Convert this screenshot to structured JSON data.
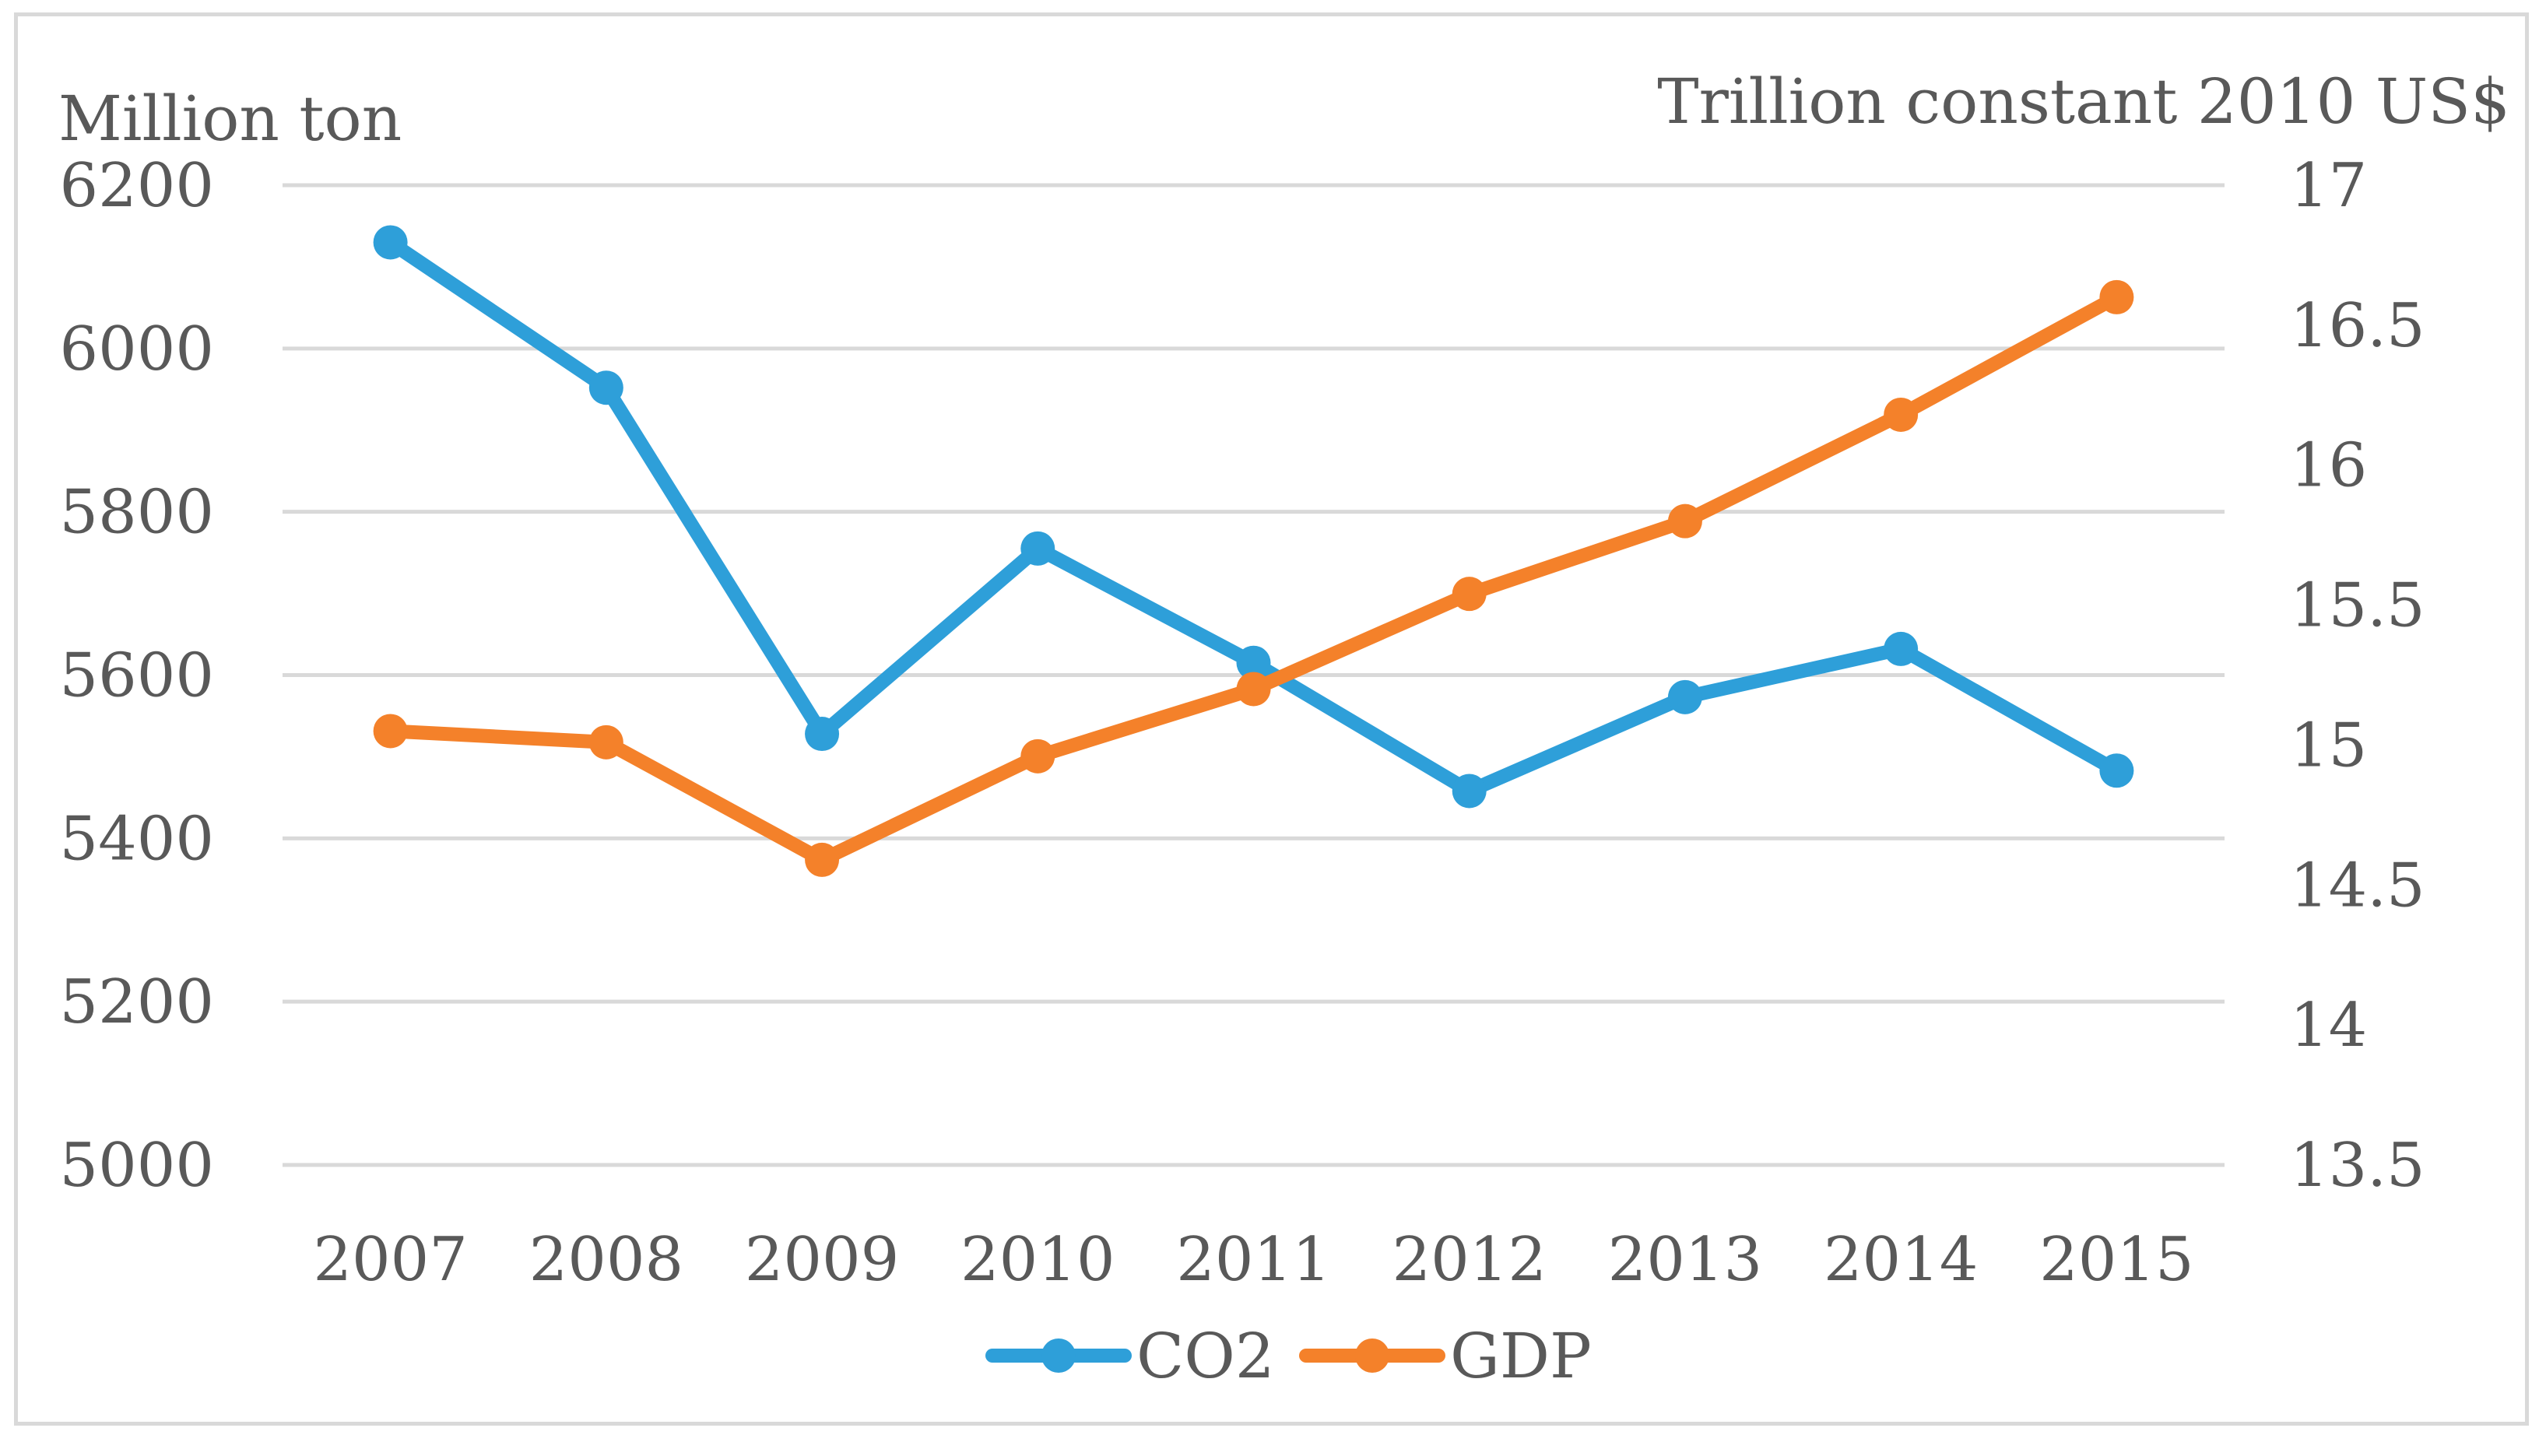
{
  "chart_data": {
    "type": "line",
    "title": "",
    "categories": [
      "2007",
      "2008",
      "2009",
      "2010",
      "2011",
      "2012",
      "2013",
      "2014",
      "2015"
    ],
    "y_left": {
      "label": "Million ton",
      "ylim": [
        5000,
        6200
      ],
      "ticks": [
        "5000",
        "5200",
        "5400",
        "5600",
        "5800",
        "6000",
        "6200"
      ]
    },
    "y_right": {
      "label": "Trillion constant 2010 US$",
      "ylim": [
        13.5,
        17
      ],
      "ticks": [
        "13.5",
        "14",
        "14.5",
        "15",
        "15.5",
        "16",
        "16.5",
        "17"
      ]
    },
    "series": [
      {
        "name": "CO2",
        "axis": "left",
        "color": "#2e9fd9",
        "values": [
          6130,
          5952,
          5528,
          5755,
          5615,
          5458,
          5573,
          5632,
          5483
        ]
      },
      {
        "name": "GDP",
        "axis": "right",
        "color": "#f4812a",
        "values": [
          15.05,
          15.01,
          14.59,
          14.96,
          15.2,
          15.54,
          15.8,
          16.18,
          16.6
        ]
      }
    ],
    "grid": true,
    "legend_position": "bottom"
  }
}
